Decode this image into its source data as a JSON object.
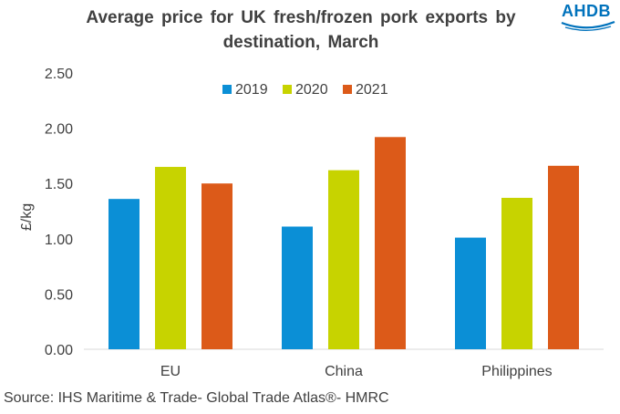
{
  "chart_data": {
    "type": "bar",
    "title": "Average price for UK fresh/frozen pork exports by destination, March",
    "xlabel": "",
    "ylabel": "£/kg",
    "ylim": [
      0,
      2.5
    ],
    "yticks": [
      "0.00",
      "0.50",
      "1.00",
      "1.50",
      "2.00",
      "2.50"
    ],
    "grid": false,
    "legend_position": "top",
    "categories": [
      "EU",
      "China",
      "Philippines"
    ],
    "series": [
      {
        "name": "2019",
        "color": "#0b8fd6",
        "values": [
          1.36,
          1.11,
          1.01
        ]
      },
      {
        "name": "2020",
        "color": "#c7d300",
        "values": [
          1.65,
          1.62,
          1.37
        ]
      },
      {
        "name": "2021",
        "color": "#dc5a19",
        "values": [
          1.5,
          1.92,
          1.66
        ]
      }
    ]
  },
  "logo": {
    "text": "AHDB",
    "color": "#0072bc"
  },
  "source": "Source: IHS Maritime & Trade- Global Trade Atlas®- HMRC"
}
